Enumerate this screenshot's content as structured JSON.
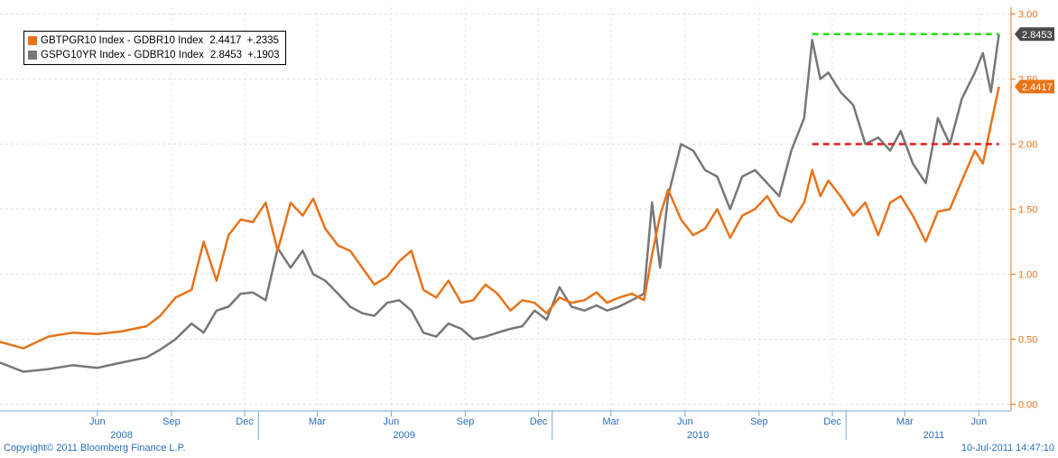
{
  "chart_data": {
    "type": "line",
    "y_axis": {
      "position": "right",
      "min": 0.0,
      "max": 3.0,
      "ticks": [
        "0.00",
        "0.50",
        "1.00",
        "1.50",
        "2.00",
        "2.50",
        "3.00"
      ]
    },
    "x_axis": {
      "month_labels": [
        "Jun",
        "Sep",
        "Dec",
        "Mar",
        "Jun",
        "Sep",
        "Dec",
        "Mar",
        "Jun",
        "Sep",
        "Dec",
        "Mar",
        "Jun"
      ],
      "year_labels": [
        "2008",
        "2009",
        "2010",
        "2011"
      ]
    },
    "series": [
      {
        "name": "GBTPGR10 Index - GDBR10 Index",
        "last": "2.4417",
        "change": "+.2335",
        "color": "#e8731a",
        "dates": [
          "2008-02-15",
          "2008-03-15",
          "2008-04-15",
          "2008-05-15",
          "2008-06-15",
          "2008-07-15",
          "2008-08-15",
          "2008-09-01",
          "2008-09-20",
          "2008-10-10",
          "2008-10-25",
          "2008-11-10",
          "2008-11-25",
          "2008-12-10",
          "2008-12-25",
          "2009-01-10",
          "2009-01-25",
          "2009-02-10",
          "2009-02-25",
          "2009-03-10",
          "2009-03-25",
          "2009-04-10",
          "2009-04-25",
          "2009-05-10",
          "2009-05-25",
          "2009-06-10",
          "2009-06-25",
          "2009-07-10",
          "2009-07-25",
          "2009-08-10",
          "2009-08-25",
          "2009-09-10",
          "2009-09-25",
          "2009-10-10",
          "2009-10-25",
          "2009-11-10",
          "2009-11-25",
          "2009-12-10",
          "2009-12-25",
          "2010-01-10",
          "2010-01-25",
          "2010-02-10",
          "2010-02-25",
          "2010-03-10",
          "2010-03-25",
          "2010-04-10",
          "2010-04-25",
          "2010-05-05",
          "2010-05-15",
          "2010-05-25",
          "2010-06-10",
          "2010-06-25",
          "2010-07-10",
          "2010-07-25",
          "2010-08-10",
          "2010-08-25",
          "2010-09-10",
          "2010-09-25",
          "2010-10-10",
          "2010-10-25",
          "2010-11-10",
          "2010-11-20",
          "2010-11-30",
          "2010-12-10",
          "2010-12-25",
          "2011-01-10",
          "2011-01-25",
          "2011-02-10",
          "2011-02-25",
          "2011-03-10",
          "2011-03-25",
          "2011-04-10",
          "2011-04-25",
          "2011-05-10",
          "2011-05-25",
          "2011-06-10",
          "2011-06-20",
          "2011-06-30",
          "2011-07-10"
        ],
        "values": [
          0.48,
          0.43,
          0.52,
          0.55,
          0.54,
          0.56,
          0.6,
          0.68,
          0.82,
          0.88,
          1.25,
          0.95,
          1.3,
          1.42,
          1.4,
          1.55,
          1.18,
          1.55,
          1.45,
          1.58,
          1.35,
          1.22,
          1.18,
          1.05,
          0.92,
          0.98,
          1.1,
          1.18,
          0.88,
          0.82,
          0.95,
          0.78,
          0.8,
          0.92,
          0.85,
          0.72,
          0.8,
          0.78,
          0.7,
          0.82,
          0.78,
          0.8,
          0.86,
          0.78,
          0.82,
          0.85,
          0.8,
          1.15,
          1.45,
          1.65,
          1.42,
          1.3,
          1.35,
          1.5,
          1.28,
          1.45,
          1.5,
          1.6,
          1.45,
          1.4,
          1.55,
          1.8,
          1.6,
          1.72,
          1.6,
          1.45,
          1.55,
          1.3,
          1.55,
          1.6,
          1.45,
          1.25,
          1.48,
          1.5,
          1.72,
          1.95,
          1.85,
          2.15,
          2.4417
        ]
      },
      {
        "name": "GSPG10YR Index - GDBR10 Index",
        "last": "2.8453",
        "change": "+.1903",
        "color": "#777777",
        "dates": [
          "2008-02-15",
          "2008-03-15",
          "2008-04-15",
          "2008-05-15",
          "2008-06-15",
          "2008-07-15",
          "2008-08-15",
          "2008-09-01",
          "2008-09-20",
          "2008-10-10",
          "2008-10-25",
          "2008-11-10",
          "2008-11-25",
          "2008-12-10",
          "2008-12-25",
          "2009-01-10",
          "2009-01-25",
          "2009-02-10",
          "2009-02-25",
          "2009-03-10",
          "2009-03-25",
          "2009-04-10",
          "2009-04-25",
          "2009-05-10",
          "2009-05-25",
          "2009-06-10",
          "2009-06-25",
          "2009-07-10",
          "2009-07-25",
          "2009-08-10",
          "2009-08-25",
          "2009-09-10",
          "2009-09-25",
          "2009-10-10",
          "2009-10-25",
          "2009-11-10",
          "2009-11-25",
          "2009-12-10",
          "2009-12-25",
          "2010-01-10",
          "2010-01-25",
          "2010-02-10",
          "2010-02-25",
          "2010-03-10",
          "2010-03-25",
          "2010-04-10",
          "2010-04-25",
          "2010-05-05",
          "2010-05-15",
          "2010-05-25",
          "2010-06-10",
          "2010-06-25",
          "2010-07-10",
          "2010-07-25",
          "2010-08-10",
          "2010-08-25",
          "2010-09-10",
          "2010-09-25",
          "2010-10-10",
          "2010-10-25",
          "2010-11-10",
          "2010-11-20",
          "2010-11-30",
          "2010-12-10",
          "2010-12-25",
          "2011-01-10",
          "2011-01-25",
          "2011-02-10",
          "2011-02-25",
          "2011-03-10",
          "2011-03-25",
          "2011-04-10",
          "2011-04-25",
          "2011-05-10",
          "2011-05-25",
          "2011-06-10",
          "2011-06-20",
          "2011-06-30",
          "2011-07-10"
        ],
        "values": [
          0.32,
          0.25,
          0.27,
          0.3,
          0.28,
          0.32,
          0.36,
          0.42,
          0.5,
          0.62,
          0.55,
          0.72,
          0.75,
          0.85,
          0.86,
          0.8,
          1.2,
          1.05,
          1.18,
          1.0,
          0.95,
          0.85,
          0.75,
          0.7,
          0.68,
          0.78,
          0.8,
          0.72,
          0.55,
          0.52,
          0.62,
          0.58,
          0.5,
          0.52,
          0.55,
          0.58,
          0.6,
          0.72,
          0.65,
          0.9,
          0.75,
          0.72,
          0.76,
          0.72,
          0.75,
          0.8,
          0.85,
          1.55,
          1.05,
          1.6,
          2.0,
          1.95,
          1.8,
          1.75,
          1.5,
          1.75,
          1.8,
          1.7,
          1.6,
          1.95,
          2.2,
          2.8,
          2.5,
          2.55,
          2.4,
          2.3,
          2.0,
          2.05,
          1.95,
          2.1,
          1.85,
          1.7,
          2.2,
          2.0,
          2.35,
          2.55,
          2.7,
          2.4,
          2.8453
        ]
      }
    ],
    "reference_lines": [
      {
        "value": 2.8453,
        "color": "#22e011",
        "start": "2010-11-20",
        "end": "2011-07-10"
      },
      {
        "value": 2.0,
        "color": "#e01b1b",
        "start": "2010-11-20",
        "end": "2011-07-10"
      }
    ],
    "value_tags": [
      {
        "text": "2.8453",
        "color": "#4a4a4a",
        "value": 2.8453
      },
      {
        "text": "2.4417",
        "color": "#e8731a",
        "value": 2.4417
      }
    ]
  },
  "footer": {
    "copyright": "Copyright© 2011 Bloomberg Finance L.P.",
    "timestamp": "10-Jul-2011 14:47:10"
  }
}
